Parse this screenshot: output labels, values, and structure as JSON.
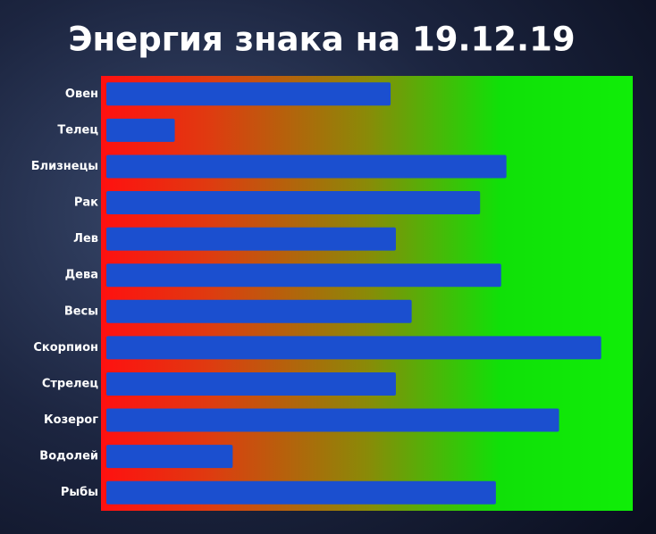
{
  "chart_data": {
    "type": "bar",
    "orientation": "horizontal",
    "title": "Энергия знака на 19.12.19",
    "categories": [
      "Овен",
      "Телец",
      "Близнецы",
      "Рак",
      "Лев",
      "Дева",
      "Весы",
      "Скорпион",
      "Стрелец",
      "Козерог",
      "Водолей",
      "Рыбы"
    ],
    "values": [
      54,
      13,
      76,
      71,
      55,
      75,
      58,
      94,
      55,
      86,
      24,
      74
    ],
    "color": "#1b4fcf",
    "xlim": [
      0,
      100
    ]
  }
}
